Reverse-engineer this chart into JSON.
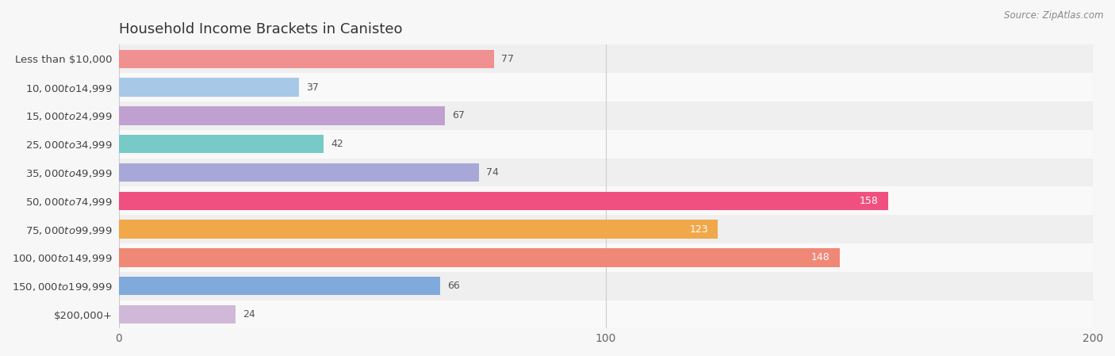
{
  "title": "Household Income Brackets in Canisteo",
  "source_text": "Source: ZipAtlas.com",
  "categories": [
    "Less than $10,000",
    "$10,000 to $14,999",
    "$15,000 to $24,999",
    "$25,000 to $34,999",
    "$35,000 to $49,999",
    "$50,000 to $74,999",
    "$75,000 to $99,999",
    "$100,000 to $149,999",
    "$150,000 to $199,999",
    "$200,000+"
  ],
  "values": [
    77,
    37,
    67,
    42,
    74,
    158,
    123,
    148,
    66,
    24
  ],
  "bar_colors": [
    "#f09090",
    "#a8c8e8",
    "#c0a0d0",
    "#78cac8",
    "#a8a8d8",
    "#f05080",
    "#f0a84a",
    "#f08878",
    "#80aadc",
    "#d0b8d8"
  ],
  "bg_color": "#f7f7f7",
  "row_bg_even": "#efefef",
  "row_bg_odd": "#f9f9f9",
  "xlim": [
    0,
    200
  ],
  "xticks": [
    0,
    100,
    200
  ],
  "title_fontsize": 13,
  "label_fontsize": 9.5,
  "value_fontsize": 9,
  "bar_height": 0.65,
  "value_threshold": 100
}
